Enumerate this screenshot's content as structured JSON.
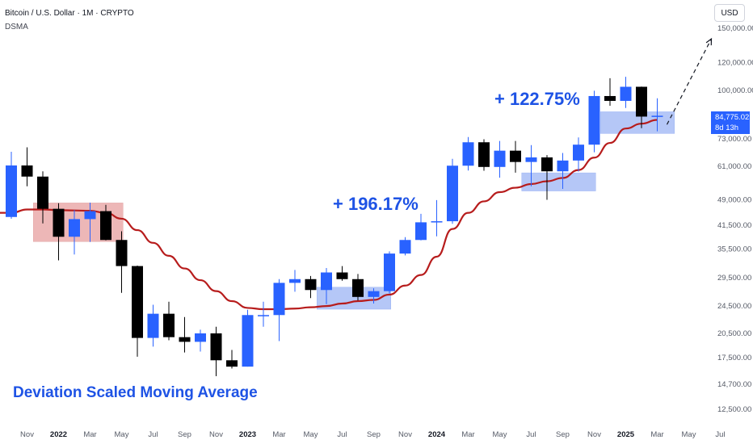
{
  "header": {
    "symbol": "Bitcoin / U.S. Dollar · 1M · CRYPTO",
    "indicator": "DSMA"
  },
  "currency_button": "USD",
  "price_tag": {
    "price": "84,775.02",
    "countdown": "8d 13h"
  },
  "annotations": {
    "gain_2024_2025": "+ 122.75%",
    "gain_2023": "+ 196.17%",
    "title_text": "Deviation Scaled Moving Average"
  },
  "colors": {
    "up": "#2962ff",
    "down": "#000000",
    "ma_line": "#b71c1c",
    "box_red": "#e8a0a0",
    "box_blue": "#9db5f5",
    "axis_text": "#555a66",
    "price_tag_bg": "#2962ff"
  },
  "chart_data": {
    "type": "candlestick",
    "title": "Bitcoin / U.S. Dollar · 1M · CRYPTO",
    "scale": "log",
    "y_ticks": [
      "12,500.00",
      "14,700.00",
      "17,500.00",
      "20,500.00",
      "24,500.00",
      "29,500.00",
      "35,500.00",
      "41,500.00",
      "49,000.00",
      "61,000.00",
      "73,000.00",
      "100,000.00",
      "120,000.00",
      "150,000.00"
    ],
    "y_tick_values": [
      12500,
      14700,
      17500,
      20500,
      24500,
      29500,
      35500,
      41500,
      49000,
      61000,
      73000,
      100000,
      120000,
      150000
    ],
    "x_ticks": [
      "Nov",
      "2022",
      "Mar",
      "May",
      "Jul",
      "Sep",
      "Nov",
      "2023",
      "Mar",
      "May",
      "Jul",
      "Sep",
      "Nov",
      "2024",
      "Mar",
      "May",
      "Jul",
      "Sep",
      "Nov",
      "2025",
      "Mar",
      "May",
      "Jul"
    ],
    "x_tick_bold": [
      false,
      true,
      false,
      false,
      false,
      false,
      false,
      true,
      false,
      false,
      false,
      false,
      false,
      true,
      false,
      false,
      false,
      false,
      false,
      true,
      false,
      false,
      false
    ],
    "x_tick_months": [
      "2021-11",
      "2022-01",
      "2022-03",
      "2022-05",
      "2022-07",
      "2022-09",
      "2022-11",
      "2023-01",
      "2023-03",
      "2023-05",
      "2023-07",
      "2023-09",
      "2023-11",
      "2024-01",
      "2024-03",
      "2024-05",
      "2024-07",
      "2024-09",
      "2024-11",
      "2025-01",
      "2025-03",
      "2025-05",
      "2025-07"
    ],
    "candles": [
      {
        "date": "2021-10",
        "open": 43800,
        "high": 67000,
        "low": 43300,
        "close": 61300
      },
      {
        "date": "2021-11",
        "open": 61300,
        "high": 69000,
        "low": 53500,
        "close": 57000
      },
      {
        "date": "2021-12",
        "open": 57000,
        "high": 59000,
        "low": 42000,
        "close": 46200
      },
      {
        "date": "2022-01",
        "open": 46200,
        "high": 47900,
        "low": 33000,
        "close": 38500
      },
      {
        "date": "2022-02",
        "open": 38500,
        "high": 45800,
        "low": 34300,
        "close": 43200
      },
      {
        "date": "2022-03",
        "open": 43200,
        "high": 48100,
        "low": 37200,
        "close": 45500
      },
      {
        "date": "2022-04",
        "open": 45500,
        "high": 47400,
        "low": 37600,
        "close": 37700
      },
      {
        "date": "2022-05",
        "open": 37700,
        "high": 39900,
        "low": 26700,
        "close": 31800
      },
      {
        "date": "2022-06",
        "open": 31800,
        "high": 31900,
        "low": 17600,
        "close": 19900
      },
      {
        "date": "2022-07",
        "open": 19900,
        "high": 24700,
        "low": 18800,
        "close": 23300
      },
      {
        "date": "2022-08",
        "open": 23300,
        "high": 25200,
        "low": 19600,
        "close": 20000
      },
      {
        "date": "2022-09",
        "open": 20000,
        "high": 22800,
        "low": 18100,
        "close": 19400
      },
      {
        "date": "2022-10",
        "open": 19400,
        "high": 21000,
        "low": 18200,
        "close": 20500
      },
      {
        "date": "2022-11",
        "open": 20500,
        "high": 21400,
        "low": 15500,
        "close": 17200
      },
      {
        "date": "2022-12",
        "open": 17200,
        "high": 18400,
        "low": 16300,
        "close": 16500
      },
      {
        "date": "2023-01",
        "open": 16500,
        "high": 23900,
        "low": 16500,
        "close": 23100
      },
      {
        "date": "2023-02",
        "open": 23100,
        "high": 25200,
        "low": 21400,
        "close": 23100
      },
      {
        "date": "2023-03",
        "open": 23100,
        "high": 29200,
        "low": 19500,
        "close": 28500
      },
      {
        "date": "2023-04",
        "open": 28500,
        "high": 31000,
        "low": 26900,
        "close": 29200
      },
      {
        "date": "2023-05",
        "open": 29200,
        "high": 29800,
        "low": 25800,
        "close": 27200
      },
      {
        "date": "2023-06",
        "open": 27200,
        "high": 31400,
        "low": 24800,
        "close": 30500
      },
      {
        "date": "2023-07",
        "open": 30500,
        "high": 31800,
        "low": 28900,
        "close": 29200
      },
      {
        "date": "2023-08",
        "open": 29200,
        "high": 30200,
        "low": 25400,
        "close": 26000
      },
      {
        "date": "2023-09",
        "open": 26000,
        "high": 27500,
        "low": 24900,
        "close": 27000
      },
      {
        "date": "2023-10",
        "open": 27000,
        "high": 35000,
        "low": 26600,
        "close": 34500
      },
      {
        "date": "2023-11",
        "open": 34500,
        "high": 38400,
        "low": 34100,
        "close": 37700
      },
      {
        "date": "2023-12",
        "open": 37700,
        "high": 44700,
        "low": 37600,
        "close": 42300
      },
      {
        "date": "2024-01",
        "open": 42300,
        "high": 48900,
        "low": 38600,
        "close": 42600
      },
      {
        "date": "2024-02",
        "open": 42600,
        "high": 64000,
        "low": 41900,
        "close": 61200
      },
      {
        "date": "2024-03",
        "open": 61200,
        "high": 73800,
        "low": 59300,
        "close": 71300
      },
      {
        "date": "2024-04",
        "open": 71300,
        "high": 72700,
        "low": 59200,
        "close": 60700
      },
      {
        "date": "2024-05",
        "open": 60700,
        "high": 71900,
        "low": 56600,
        "close": 67500
      },
      {
        "date": "2024-06",
        "open": 67500,
        "high": 71900,
        "low": 58500,
        "close": 62700
      },
      {
        "date": "2024-07",
        "open": 62700,
        "high": 70000,
        "low": 53500,
        "close": 64600
      },
      {
        "date": "2024-08",
        "open": 64600,
        "high": 65600,
        "low": 49000,
        "close": 59000
      },
      {
        "date": "2024-09",
        "open": 59000,
        "high": 66500,
        "low": 52600,
        "close": 63300
      },
      {
        "date": "2024-10",
        "open": 63300,
        "high": 73600,
        "low": 58900,
        "close": 70200
      },
      {
        "date": "2024-11",
        "open": 70200,
        "high": 99800,
        "low": 66800,
        "close": 96400
      },
      {
        "date": "2024-12",
        "open": 96400,
        "high": 108300,
        "low": 90500,
        "close": 93400
      },
      {
        "date": "2025-01",
        "open": 93400,
        "high": 109300,
        "low": 89200,
        "close": 102400
      },
      {
        "date": "2025-02",
        "open": 102400,
        "high": 102500,
        "low": 78200,
        "close": 84300
      },
      {
        "date": "2025-03",
        "open": 84300,
        "high": 95000,
        "low": 76600,
        "close": 84775
      }
    ],
    "moving_average": {
      "name": "DSMA",
      "points": [
        {
          "date": "2021-10",
          "value": 45000
        },
        {
          "date": "2021-11",
          "value": 46000
        },
        {
          "date": "2021-12",
          "value": 46000
        },
        {
          "date": "2022-01",
          "value": 45800
        },
        {
          "date": "2022-02",
          "value": 45700
        },
        {
          "date": "2022-03",
          "value": 45600
        },
        {
          "date": "2022-04",
          "value": 45000
        },
        {
          "date": "2022-05",
          "value": 43300
        },
        {
          "date": "2022-06",
          "value": 40200
        },
        {
          "date": "2022-07",
          "value": 37000
        },
        {
          "date": "2022-08",
          "value": 34000
        },
        {
          "date": "2022-09",
          "value": 31300
        },
        {
          "date": "2022-10",
          "value": 29000
        },
        {
          "date": "2022-11",
          "value": 27000
        },
        {
          "date": "2022-12",
          "value": 25300
        },
        {
          "date": "2023-01",
          "value": 24200
        },
        {
          "date": "2023-02",
          "value": 24000
        },
        {
          "date": "2023-03",
          "value": 24000
        },
        {
          "date": "2023-04",
          "value": 24100
        },
        {
          "date": "2023-05",
          "value": 24300
        },
        {
          "date": "2023-06",
          "value": 24500
        },
        {
          "date": "2023-07",
          "value": 24900
        },
        {
          "date": "2023-08",
          "value": 25300
        },
        {
          "date": "2023-09",
          "value": 25500
        },
        {
          "date": "2023-10",
          "value": 26400
        },
        {
          "date": "2023-11",
          "value": 28000
        },
        {
          "date": "2023-12",
          "value": 30000
        },
        {
          "date": "2024-01",
          "value": 33800
        },
        {
          "date": "2024-02",
          "value": 40500
        },
        {
          "date": "2024-03",
          "value": 45000
        },
        {
          "date": "2024-04",
          "value": 48500
        },
        {
          "date": "2024-05",
          "value": 51500
        },
        {
          "date": "2024-06",
          "value": 53000
        },
        {
          "date": "2024-07",
          "value": 54300
        },
        {
          "date": "2024-08",
          "value": 55300
        },
        {
          "date": "2024-09",
          "value": 56500
        },
        {
          "date": "2024-10",
          "value": 59500
        },
        {
          "date": "2024-11",
          "value": 64500
        },
        {
          "date": "2024-12",
          "value": 71000
        },
        {
          "date": "2025-01",
          "value": 78000
        },
        {
          "date": "2025-02",
          "value": 80500
        },
        {
          "date": "2025-03",
          "value": 82500
        }
      ]
    },
    "boxes": [
      {
        "from": "2021-12",
        "to": "2022-05",
        "low": 37300,
        "high": 48000,
        "color": "red"
      },
      {
        "from": "2023-06",
        "to": "2023-10",
        "low": 24000,
        "high": 27700,
        "color": "blue"
      },
      {
        "from": "2024-07",
        "to": "2024-11",
        "low": 51900,
        "high": 58400,
        "color": "blue"
      },
      {
        "from": "2024-12",
        "to": "2025-04",
        "low": 75500,
        "high": 87000,
        "color": "blue"
      }
    ],
    "projection": {
      "from_date": "2025-03",
      "from_value": 88000,
      "to_date": "2025-05",
      "to_value": 140000
    }
  }
}
